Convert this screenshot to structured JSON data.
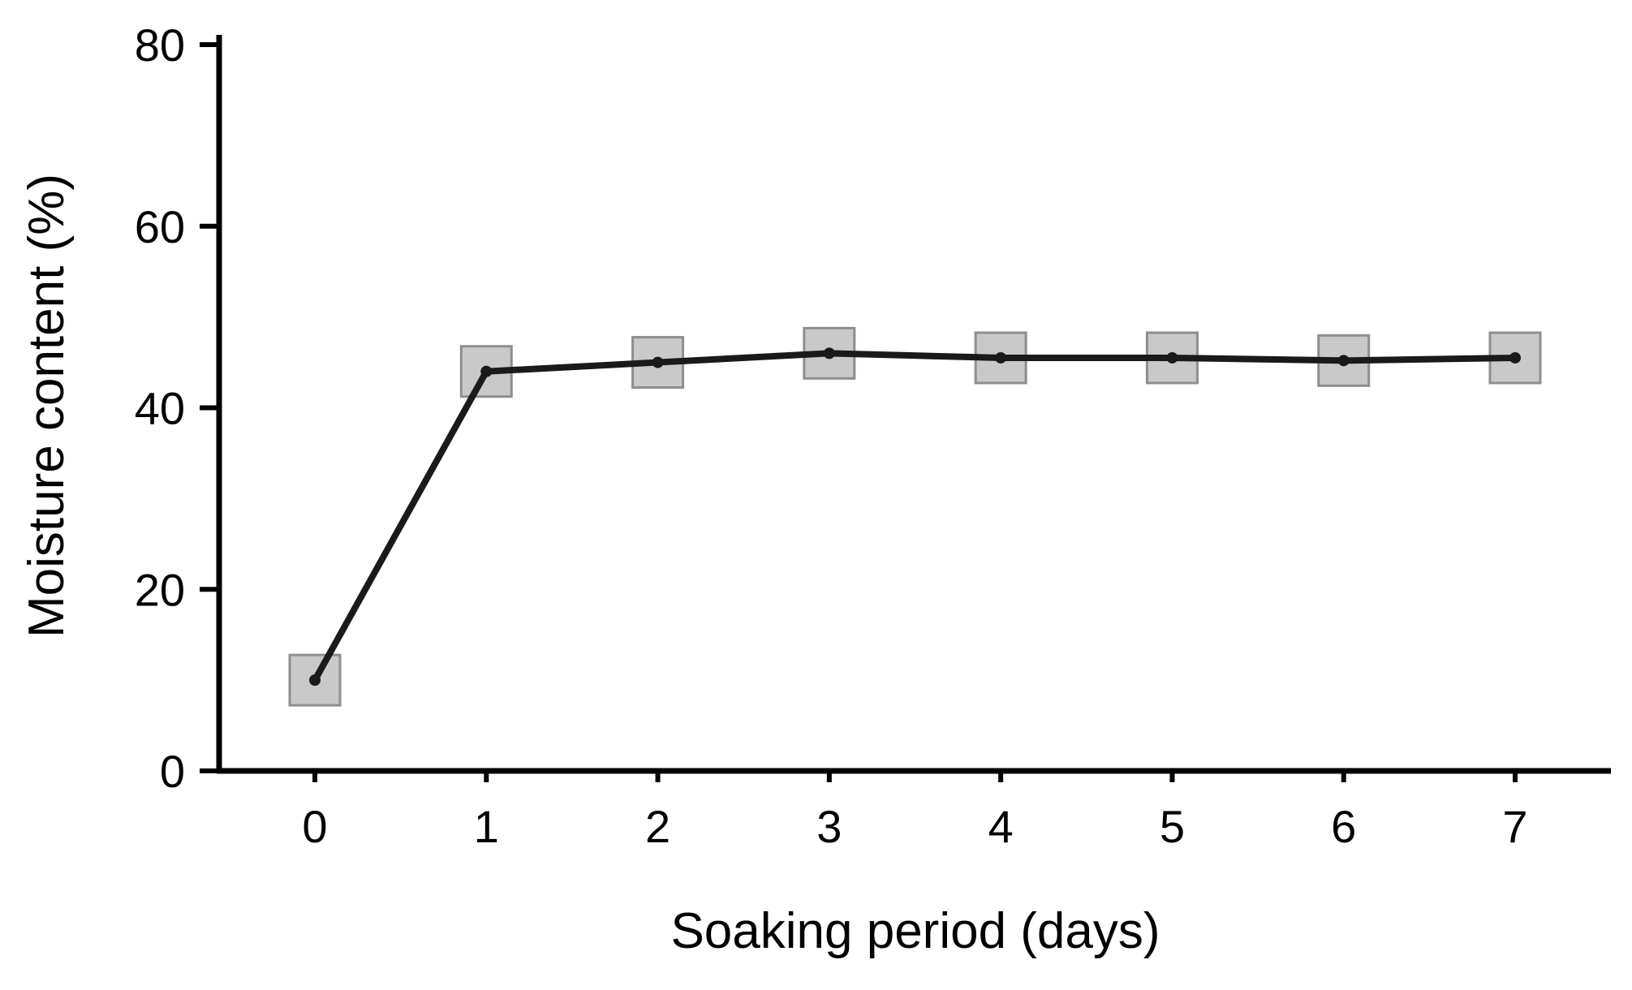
{
  "chart_data": {
    "type": "line",
    "x": [
      0,
      1,
      2,
      3,
      4,
      5,
      6,
      7
    ],
    "series": [
      {
        "name": "Moisture content",
        "values": [
          10,
          44,
          45,
          46,
          45.5,
          45.5,
          45.2,
          45.5
        ]
      }
    ],
    "title": "",
    "xlabel": "Soaking period (days)",
    "ylabel": "Moisture content (%)",
    "ylim": [
      0,
      80
    ],
    "yticks": [
      0,
      20,
      40,
      60,
      80
    ],
    "xticks": [
      "0",
      "1",
      "2",
      "3",
      "4",
      "5",
      "6",
      "7"
    ],
    "grid": false,
    "legend": "none",
    "line_color": "#1a1a1a",
    "axis_color": "#000000",
    "marker": {
      "shape": "square",
      "fill": "#c9c9c9",
      "stroke": "#8e8e8e"
    }
  }
}
